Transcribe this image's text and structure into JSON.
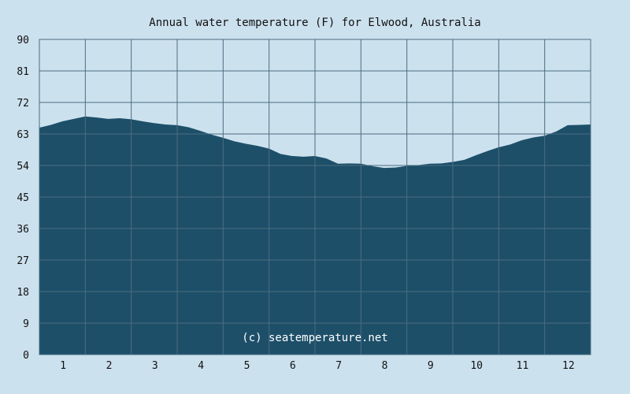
{
  "chart_data": {
    "type": "area",
    "title": "Annual water temperature (F) for Elwood, Australia",
    "xlabel": "",
    "ylabel": "",
    "ylim": [
      0,
      90
    ],
    "y_ticks": [
      0,
      9,
      18,
      27,
      36,
      45,
      54,
      63,
      72,
      81,
      90
    ],
    "x_range": [
      0.5,
      12.5
    ],
    "x_tick_labels": [
      "1",
      "2",
      "3",
      "4",
      "5",
      "6",
      "7",
      "8",
      "9",
      "10",
      "11",
      "12"
    ],
    "grid": true,
    "series": [
      {
        "x": [
          0.5,
          0.75,
          1.0,
          1.25,
          1.5,
          1.75,
          2.0,
          2.25,
          2.5,
          2.75,
          3.0,
          3.25,
          3.5,
          3.75,
          4.0,
          4.25,
          4.5,
          4.75,
          5.0,
          5.25,
          5.5,
          5.75,
          6.0,
          6.25,
          6.5,
          6.75,
          7.0,
          7.25,
          7.5,
          7.75,
          8.0,
          8.25,
          8.5,
          8.75,
          9.0,
          9.25,
          9.5,
          9.75,
          10.0,
          10.25,
          10.5,
          10.75,
          11.0,
          11.25,
          11.5,
          11.75,
          12.0,
          12.25,
          12.5
        ],
        "values": [
          64.8,
          65.6,
          66.6,
          67.3,
          68.0,
          67.7,
          67.3,
          67.5,
          67.2,
          66.6,
          66.1,
          65.7,
          65.5,
          64.9,
          63.9,
          62.8,
          61.9,
          60.9,
          60.2,
          59.6,
          58.8,
          57.3,
          56.7,
          56.5,
          56.7,
          56.0,
          54.5,
          54.6,
          54.5,
          53.8,
          53.3,
          53.4,
          53.9,
          54.1,
          54.5,
          54.6,
          55.0,
          55.6,
          56.9,
          58.1,
          59.2,
          60.0,
          61.2,
          62.0,
          62.5,
          63.7,
          65.5,
          65.6,
          65.7
        ]
      }
    ],
    "colors": {
      "background": "#cce1ee",
      "plot_background": "#cce1ee",
      "fill": "#1d4f69",
      "grid": "#4d6d80"
    }
  },
  "credit": "(c) seatemperature.net"
}
